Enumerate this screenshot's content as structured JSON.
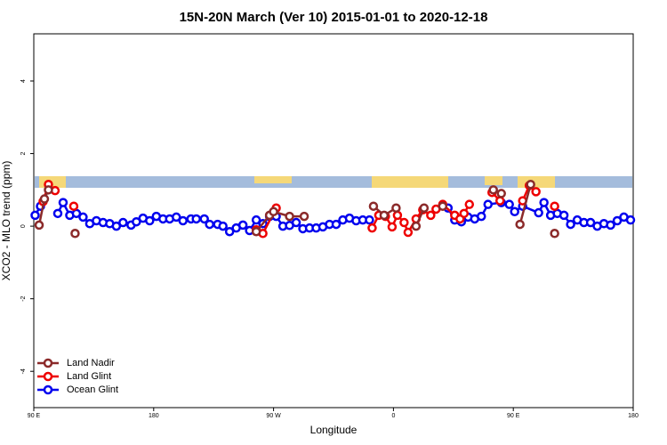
{
  "chart_data": {
    "type": "line",
    "title": "15N-20N March (Ver 10)   2015-01-01 to 2020-12-18",
    "x_label": "Longitude",
    "y_label": "XCO2 - MLO trend (ppm)",
    "xlim": [
      90,
      540
    ],
    "xticks": [
      {
        "value": 90,
        "label": "90 E"
      },
      {
        "value": 180,
        "label": "180"
      },
      {
        "value": 270,
        "label": "90 W"
      },
      {
        "value": 360,
        "label": "0"
      },
      {
        "value": 450,
        "label": "90 E"
      },
      {
        "value": 540,
        "label": "180"
      }
    ],
    "ylim": [
      -5,
      5.3
    ],
    "yticks": [
      -4,
      -2,
      0,
      2,
      4
    ],
    "legend": "bottom-left",
    "series": [
      {
        "name": "Land Nadir",
        "color": "#8b2a2a",
        "x": [
          94,
          98,
          101,
          121,
          257,
          267,
          270,
          282,
          293,
          345,
          353,
          362,
          377,
          383,
          397,
          435,
          441,
          455,
          463,
          481
        ],
        "values": [
          0.03,
          0.75,
          1.0,
          -0.2,
          -0.15,
          0.3,
          0.4,
          0.27,
          0.27,
          0.55,
          0.3,
          0.5,
          0,
          0.5,
          0.55,
          1.0,
          0.9,
          0.05,
          1.15,
          -0.2
        ]
      },
      {
        "name": "Land Glint",
        "color": "#ee0000",
        "x": [
          97,
          101,
          106,
          120,
          257,
          262,
          272,
          344,
          349,
          354,
          359,
          363,
          368,
          371,
          377,
          382,
          388,
          392,
          397,
          406,
          410,
          413,
          417,
          434,
          440,
          457,
          462,
          467,
          481
        ],
        "values": [
          0.68,
          1.15,
          0.98,
          0.55,
          -0.1,
          -0.2,
          0.5,
          -0.05,
          0.3,
          0.27,
          -0.02,
          0.3,
          0.1,
          -0.17,
          0.2,
          0.45,
          0.3,
          0.47,
          0.6,
          0.3,
          0.2,
          0.35,
          0.6,
          0.93,
          0.7,
          0.7,
          1.12,
          0.95,
          0.55
        ]
      },
      {
        "name": "Ocean Glint",
        "color": "#0000ee",
        "x": [
          91,
          95,
          108,
          112,
          117,
          122,
          127,
          132,
          137,
          142,
          147,
          152,
          157,
          163,
          167,
          172,
          177,
          182,
          187,
          192,
          197,
          202,
          208,
          212,
          218,
          222,
          228,
          232,
          237,
          242,
          247,
          252,
          257,
          262,
          267,
          272,
          277,
          282,
          287,
          292,
          297,
          302,
          307,
          312,
          317,
          322,
          327,
          332,
          337,
          342,
          401,
          406,
          411,
          416,
          421,
          426,
          431,
          441,
          447,
          451,
          457,
          469,
          473,
          478,
          483,
          488,
          493,
          498,
          503,
          508,
          513,
          518,
          523,
          528,
          533,
          538
        ],
        "values": [
          0.3,
          0.55,
          0.35,
          0.65,
          0.3,
          0.35,
          0.25,
          0.07,
          0.15,
          0.1,
          0.07,
          0,
          0.1,
          0.03,
          0.12,
          0.22,
          0.15,
          0.27,
          0.2,
          0.2,
          0.25,
          0.15,
          0.2,
          0.2,
          0.2,
          0.05,
          0.05,
          0,
          -0.15,
          -0.05,
          0.03,
          -0.12,
          0.17,
          0.07,
          0.27,
          0.27,
          0,
          0.02,
          0.1,
          -0.07,
          -0.05,
          -0.05,
          -0.02,
          0.05,
          0.05,
          0.17,
          0.22,
          0.15,
          0.17,
          0.17,
          0.5,
          0.17,
          0.12,
          0.25,
          0.2,
          0.27,
          0.6,
          0.65,
          0.6,
          0.4,
          0.55,
          0.37,
          0.65,
          0.3,
          0.35,
          0.3,
          0.05,
          0.17,
          0.1,
          0.1,
          0,
          0.07,
          0.03,
          0.15,
          0.25,
          0.17
        ]
      }
    ]
  }
}
